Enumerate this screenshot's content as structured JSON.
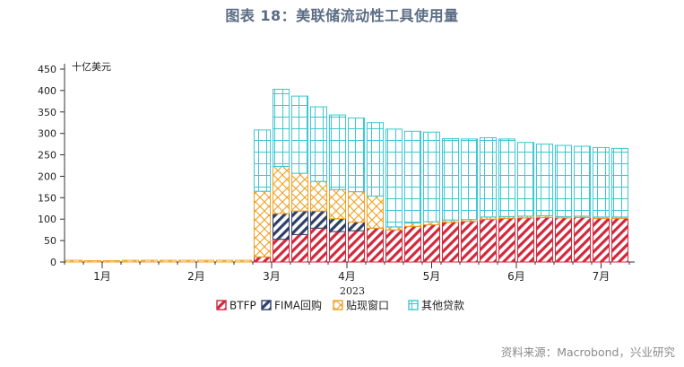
{
  "header": {
    "title": "图表 18：美联储流动性工具使用量"
  },
  "footer": {
    "source": "资料来源：Macrobond，兴业研究"
  },
  "chart_data": {
    "type": "bar",
    "stacked": true,
    "unit_label": "十亿美元",
    "xlabel": "2023",
    "ylim": [
      0,
      450
    ],
    "yticks": [
      0,
      50,
      100,
      150,
      200,
      250,
      300,
      350,
      400,
      450
    ],
    "xtick_labels": [
      {
        "label": "1月",
        "at": 2
      },
      {
        "label": "2月",
        "at": 7
      },
      {
        "label": "3月",
        "at": 11
      },
      {
        "label": "4月",
        "at": 15
      },
      {
        "label": "5月",
        "at": 19.5
      },
      {
        "label": "6月",
        "at": 24
      },
      {
        "label": "7月",
        "at": 28.5
      }
    ],
    "weeks": 30,
    "series": [
      {
        "name": "BTFP",
        "color": "#d2283c",
        "pattern": "diag-red",
        "values": [
          0,
          0,
          0,
          0,
          0,
          0,
          0,
          0,
          0,
          0,
          12,
          53,
          64,
          79,
          71,
          73,
          79,
          75,
          83,
          87,
          93,
          95,
          100,
          102,
          103,
          104,
          103,
          104,
          102,
          102
        ]
      },
      {
        "name": "FIMA回购",
        "color": "#2f3f66",
        "pattern": "diag-navy",
        "values": [
          0,
          0,
          0,
          0,
          0,
          0,
          0,
          0,
          0,
          0,
          0,
          60,
          55,
          40,
          30,
          20,
          0,
          0,
          0,
          0,
          0,
          0,
          0,
          0,
          0,
          0,
          0,
          0,
          0,
          0
        ]
      },
      {
        "name": "贴现窗口",
        "color": "#f0a020",
        "pattern": "cross-orange",
        "values": [
          4,
          3,
          3,
          4,
          4,
          4,
          4,
          4,
          4,
          4,
          153,
          110,
          88,
          69,
          68,
          71,
          75,
          7,
          8,
          7,
          5,
          4,
          5,
          4,
          4,
          4,
          3,
          3,
          3,
          3
        ]
      },
      {
        "name": "其他贷款",
        "color": "#3ec6cf",
        "pattern": "grid-cyan",
        "values": [
          0,
          0,
          0,
          0,
          0,
          0,
          0,
          0,
          0,
          0,
          143,
          180,
          180,
          174,
          174,
          172,
          171,
          228,
          214,
          209,
          190,
          188,
          185,
          181,
          172,
          167,
          166,
          163,
          162,
          160
        ]
      }
    ],
    "legend_position": "bottom",
    "grid": false
  }
}
